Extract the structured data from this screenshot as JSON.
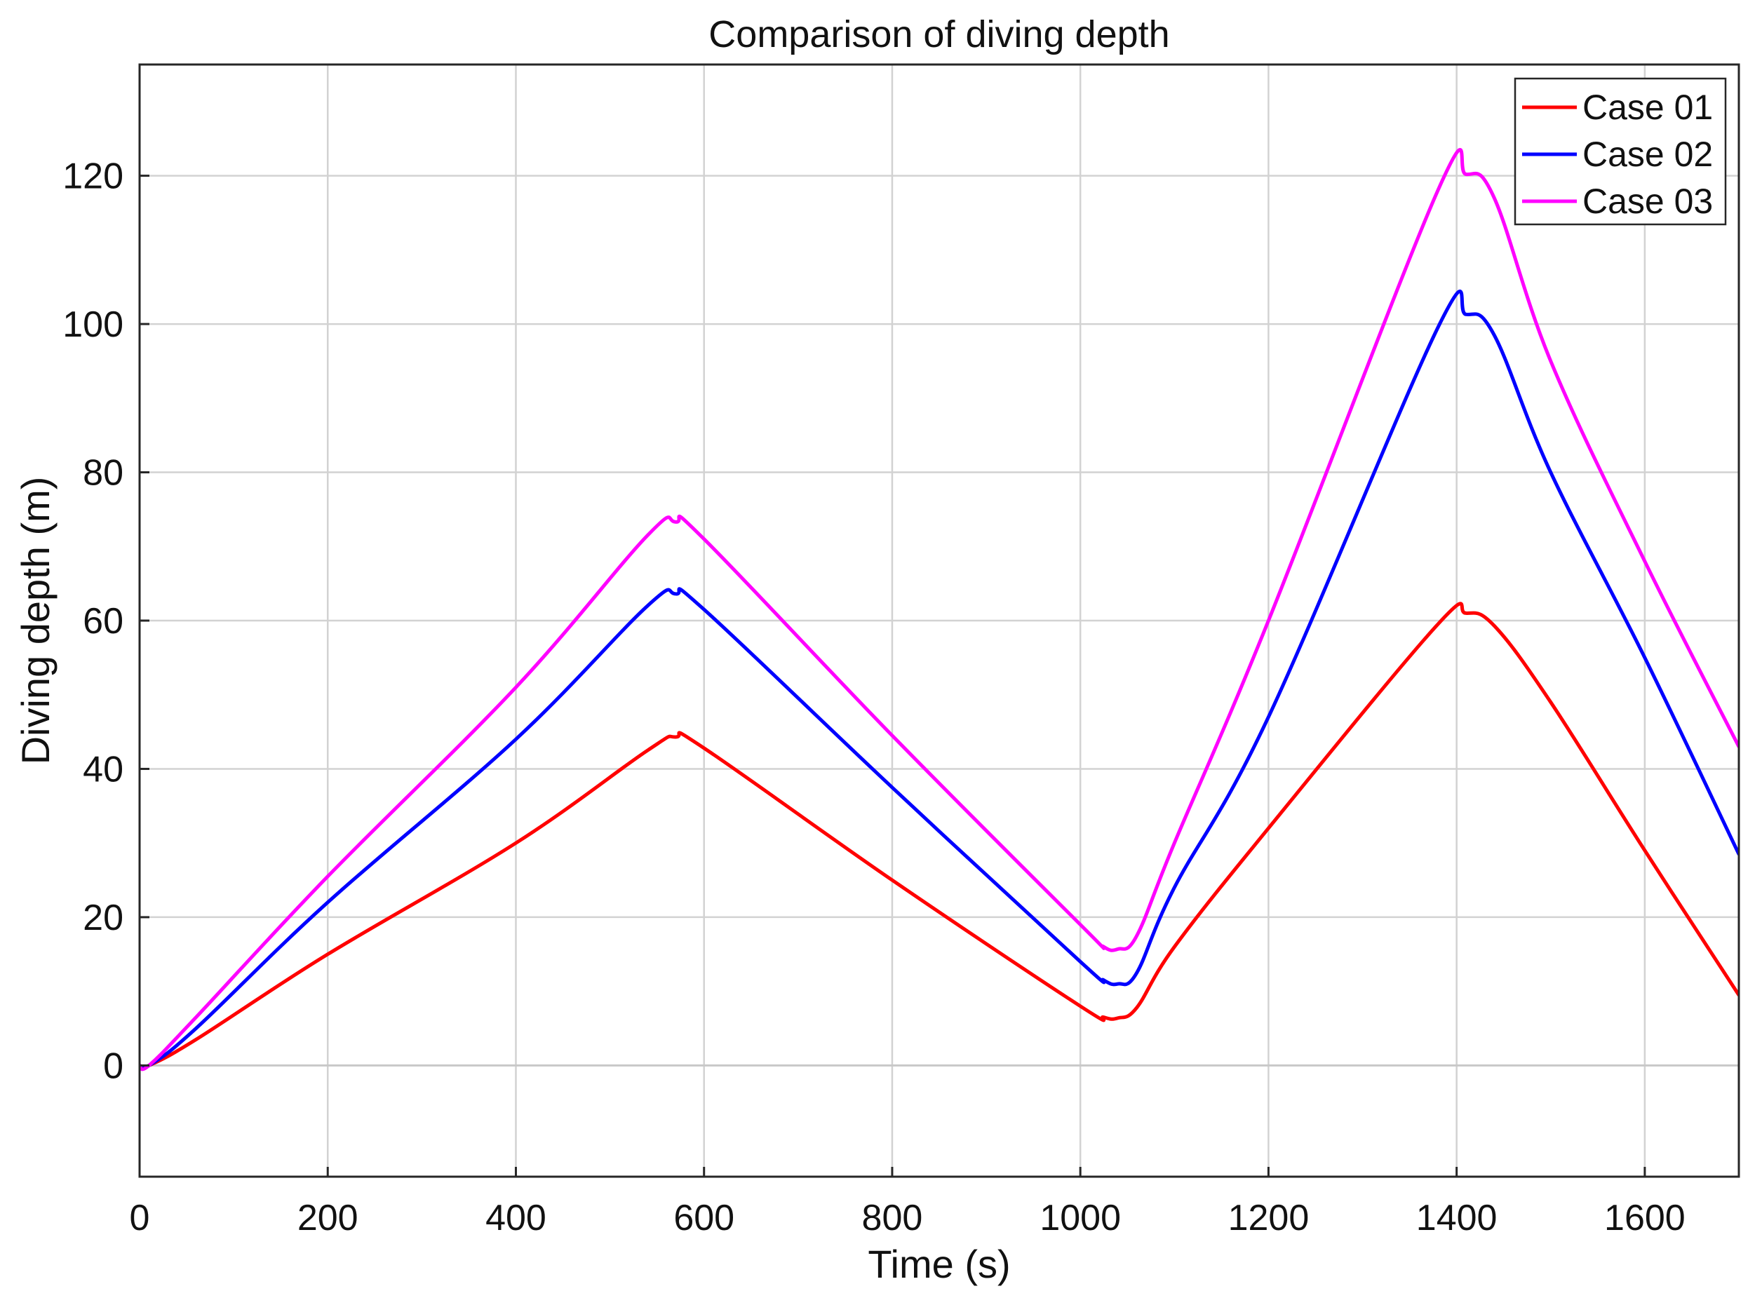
{
  "chart_data": {
    "type": "line",
    "title": "Comparison of diving depth",
    "xlabel": "Time (s)",
    "ylabel": "Diving depth (m)",
    "xlim": [
      0,
      1700
    ],
    "ylim": [
      -15,
      135
    ],
    "xticks": [
      0,
      200,
      400,
      600,
      800,
      1000,
      1200,
      1400,
      1600
    ],
    "yticks": [
      0,
      20,
      40,
      60,
      80,
      100,
      120
    ],
    "grid": true,
    "legend_position": "top-right",
    "series": [
      {
        "name": "Case 01",
        "color": "#ff0000",
        "points": [
          [
            0,
            0
          ],
          [
            10,
            0
          ],
          [
            60,
            3.5
          ],
          [
            200,
            15
          ],
          [
            400,
            30
          ],
          [
            540,
            42.5
          ],
          [
            570,
            44.3
          ],
          [
            600,
            42.8
          ],
          [
            800,
            25
          ],
          [
            1000,
            8
          ],
          [
            1025,
            6.5
          ],
          [
            1040,
            6.4
          ],
          [
            1060,
            7.8
          ],
          [
            1100,
            16
          ],
          [
            1200,
            32
          ],
          [
            1380,
            59.5
          ],
          [
            1410,
            61
          ],
          [
            1440,
            59.3
          ],
          [
            1500,
            49
          ],
          [
            1600,
            29
          ],
          [
            1700,
            9.5
          ]
        ]
      },
      {
        "name": "Case 02",
        "color": "#0000ff",
        "points": [
          [
            0,
            0
          ],
          [
            10,
            0
          ],
          [
            60,
            5
          ],
          [
            200,
            22
          ],
          [
            400,
            44
          ],
          [
            540,
            62
          ],
          [
            570,
            63.6
          ],
          [
            600,
            61.5
          ],
          [
            800,
            37.5
          ],
          [
            1000,
            14
          ],
          [
            1025,
            11.5
          ],
          [
            1040,
            11
          ],
          [
            1060,
            12.5
          ],
          [
            1100,
            24
          ],
          [
            1200,
            47
          ],
          [
            1380,
            99.5
          ],
          [
            1410,
            101.3
          ],
          [
            1440,
            98.5
          ],
          [
            1500,
            80
          ],
          [
            1600,
            55
          ],
          [
            1700,
            28.5
          ]
        ]
      },
      {
        "name": "Case 03",
        "color": "#ff00ff",
        "points": [
          [
            0,
            0
          ],
          [
            10,
            0
          ],
          [
            60,
            6.5
          ],
          [
            200,
            25.5
          ],
          [
            400,
            51
          ],
          [
            540,
            71.5
          ],
          [
            570,
            73.3
          ],
          [
            600,
            71
          ],
          [
            800,
            44.5
          ],
          [
            1000,
            19
          ],
          [
            1025,
            16
          ],
          [
            1040,
            15.7
          ],
          [
            1060,
            17.5
          ],
          [
            1100,
            30
          ],
          [
            1200,
            60
          ],
          [
            1380,
            118
          ],
          [
            1410,
            120.2
          ],
          [
            1440,
            117
          ],
          [
            1500,
            95
          ],
          [
            1600,
            68
          ],
          [
            1700,
            43
          ]
        ]
      }
    ]
  }
}
